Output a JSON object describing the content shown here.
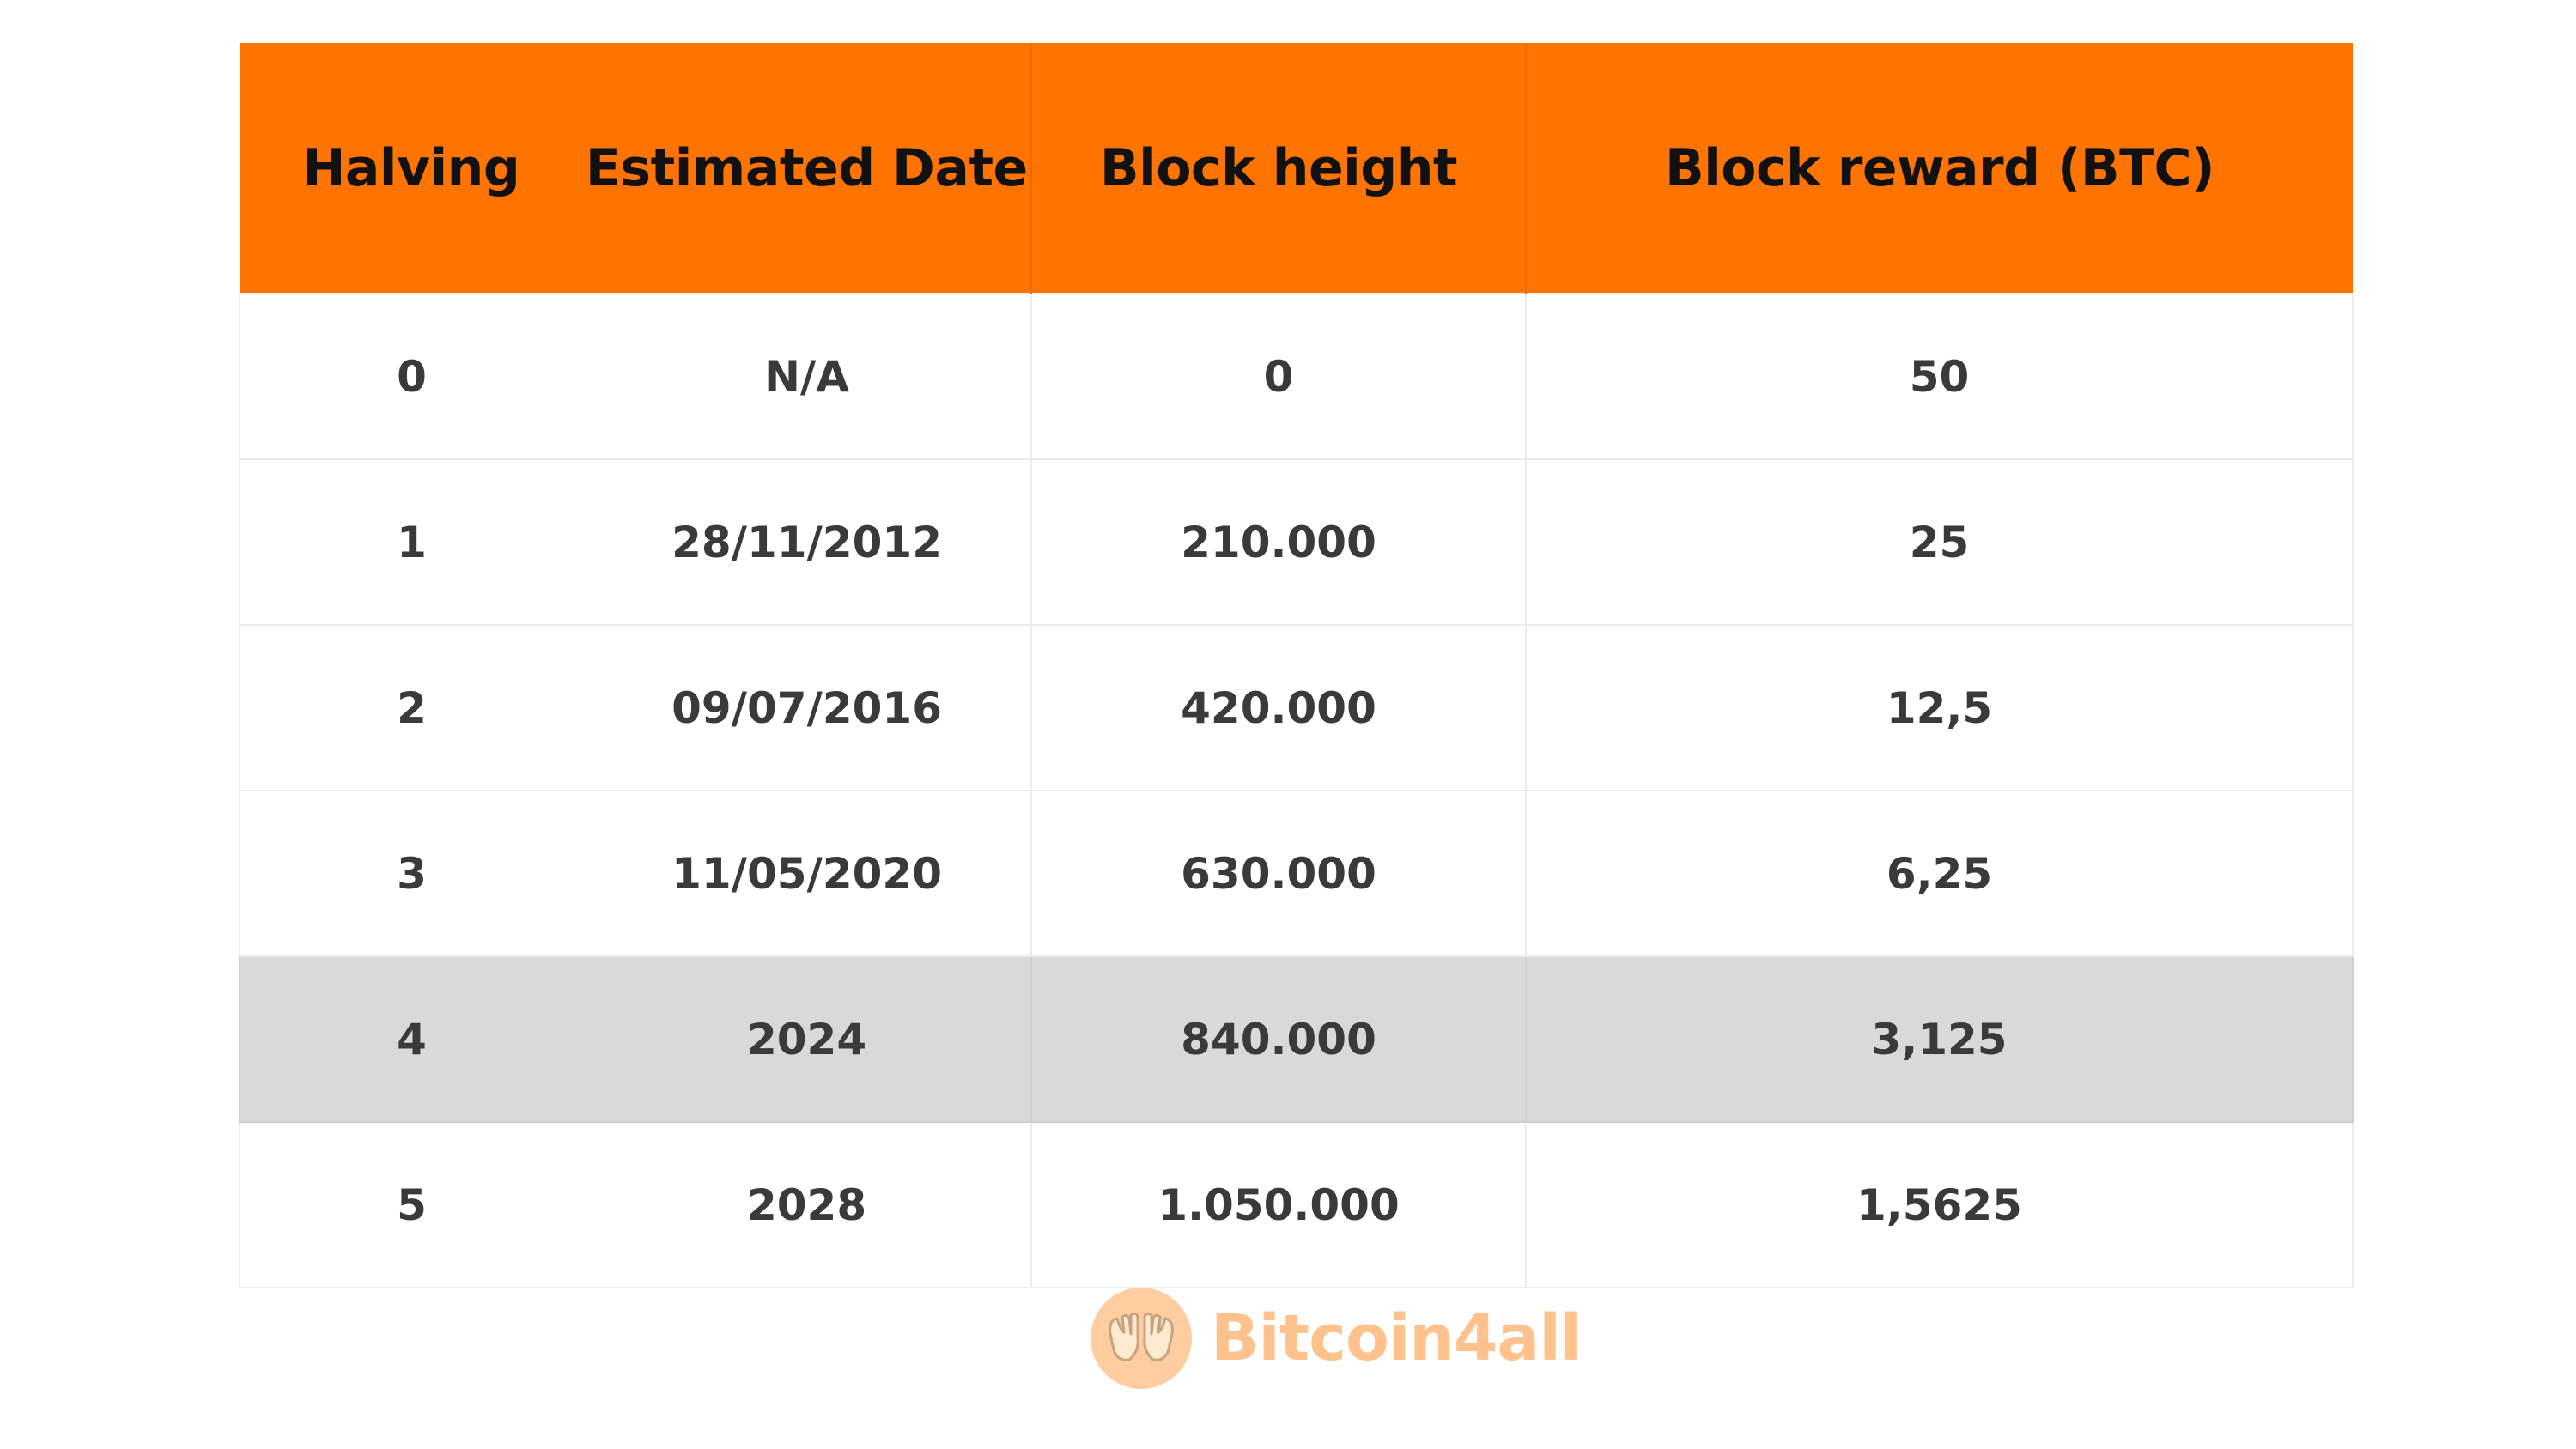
{
  "table": {
    "headers": {
      "halving": "Halving",
      "date": "Estimated Date",
      "height": "Block height",
      "reward": "Block reward (BTC)"
    },
    "rows": [
      {
        "halving": "0",
        "date": "N/A",
        "height": "0",
        "reward": "50"
      },
      {
        "halving": "1",
        "date": "28/11/2012",
        "height": "210.000",
        "reward": "25"
      },
      {
        "halving": "2",
        "date": "09/07/2016",
        "height": "420.000",
        "reward": "12,5"
      },
      {
        "halving": "3",
        "date": "11/05/2020",
        "height": "630.000",
        "reward": "6,25"
      },
      {
        "halving": "4",
        "date": "2024",
        "height": "840.000",
        "reward": "3,125"
      },
      {
        "halving": "5",
        "date": "2028",
        "height": "1.050.000",
        "reward": "1,5625"
      }
    ],
    "highlighted_row": 4,
    "colors": {
      "header_bg": "#ff7400",
      "highlight_bg": "#d9d9d9",
      "text": "#3a3a3a"
    }
  },
  "brand": {
    "name": "Bitcoin4all",
    "logo_icon": "hands-icon",
    "color": "#ff9230"
  }
}
